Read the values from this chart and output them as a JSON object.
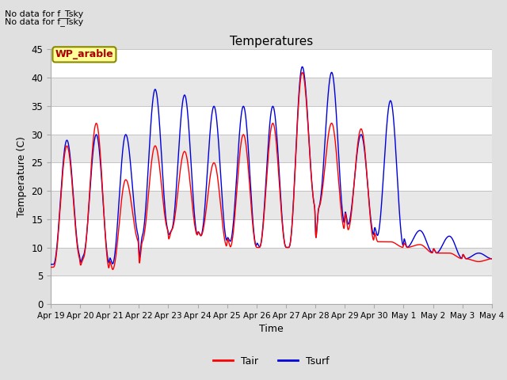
{
  "title": "Temperatures",
  "xlabel": "Time",
  "ylabel": "Temperature (C)",
  "ylim": [
    0,
    45
  ],
  "yticks": [
    0,
    5,
    10,
    15,
    20,
    25,
    30,
    35,
    40,
    45
  ],
  "annotation_text1": "No data for f_Tsky",
  "annotation_text2": "No data for f_Tsky",
  "box_label": "WP_arable",
  "legend_labels": [
    "Tair",
    "Tsurf"
  ],
  "tair_color": "#ff0000",
  "tsurf_color": "#0000dd",
  "background_color": "#e0e0e0",
  "plot_bg_color": "#f0f0f0",
  "band_color": "#e8e8e8",
  "xtick_labels": [
    "Apr 19",
    "Apr 20",
    "Apr 21",
    "Apr 22",
    "Apr 23",
    "Apr 24",
    "Apr 25",
    "Apr 26",
    "Apr 27",
    "Apr 28",
    "Apr 29",
    "Apr 30",
    "May 1",
    "May 2",
    "May 3",
    "May 4"
  ],
  "n_days": 15,
  "day_peaks_tair": [
    28,
    32,
    22,
    28,
    27,
    25,
    30,
    32,
    41,
    32,
    31,
    11,
    10.5,
    9,
    7.5
  ],
  "day_peaks_tsurf": [
    29,
    30,
    30,
    38,
    37,
    35,
    35,
    35,
    42,
    41,
    30,
    36,
    13,
    12,
    9
  ],
  "night_mins_tair": [
    6.5,
    8.0,
    6.0,
    11,
    13,
    12,
    10,
    10,
    10,
    17,
    13,
    11,
    10,
    9,
    8
  ],
  "night_mins_tsurf": [
    7,
    8.5,
    7,
    12,
    13,
    12,
    11,
    10,
    10,
    17,
    14,
    12,
    10,
    9,
    8
  ],
  "pts_per_day": 144
}
